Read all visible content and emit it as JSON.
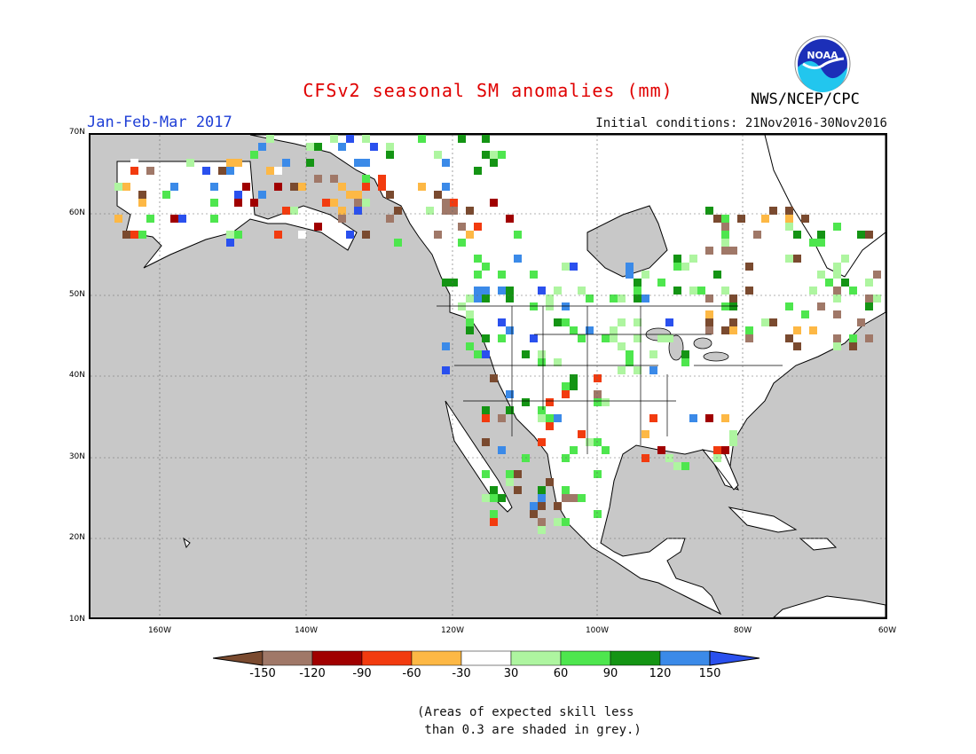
{
  "header": {
    "title": "CFSv2 seasonal SM anomalies (mm)",
    "period": "Jan-Feb-Mar 2017",
    "initial_conditions": "Initial conditions: 21Nov2016-30Nov2016",
    "agency": "NWS/NCEP/CPC",
    "logo_text": "NOAA"
  },
  "map": {
    "latitude_labels": [
      "70N",
      "60N",
      "50N",
      "40N",
      "30N",
      "20N",
      "10N"
    ],
    "longitude_labels": [
      "160W",
      "140W",
      "120W",
      "100W",
      "80W",
      "60W"
    ],
    "ocean_color": "#c8c8c8",
    "land_color": "#ffffff"
  },
  "legend": {
    "labels": [
      "-150",
      "-120",
      "-90",
      "-60",
      "-30",
      "30",
      "60",
      "90",
      "120",
      "150"
    ],
    "colors": [
      "#7a4a2f",
      "#a07868",
      "#a00000",
      "#f23b0f",
      "#fdb845",
      "#ffffff",
      "#aef5a0",
      "#4ee64e",
      "#149414",
      "#3b8ae8",
      "#2a50ee"
    ]
  },
  "note": "(Areas of expected skill less\n than 0.3 are shaded in grey.)"
}
